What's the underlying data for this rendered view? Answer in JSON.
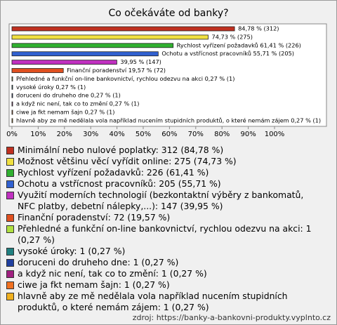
{
  "chart_data": {
    "type": "bar",
    "orientation": "horizontal",
    "title": "Co očekáváte od banky?",
    "categories": [
      "Minimální nebo nulové poplatky",
      "Možnost většinu věcí vyřídit online",
      "Rychlost vyřízení požadavků",
      "Ochotu a vstřícnost pracovníků",
      "Využití moderních technologií (bezkontaktní výběry z bankomatů, NFC platby, debetní nálepky,...)",
      "Finanční poradenství",
      "Přehledné a funkční on-line bankovnictví, rychlou odezvu na akci",
      "vysoké úroky",
      "doruceni do druheho dne",
      "a když nic není, tak co to změní",
      "ciwe ja fkt nemam šajn",
      "hlavně aby ze mě nedělala vola například nucením stupidních produktů, o které nemám zájem"
    ],
    "values": [
      84.78,
      74.73,
      61.41,
      55.71,
      39.95,
      19.57,
      0.27,
      0.27,
      0.27,
      0.27,
      0.27,
      0.27
    ],
    "value_labels": [
      "84,78 % (312)",
      "74,73 % (275)",
      "Rychlost vyřízení požadavků 61,41 % (226)",
      "Ochotu a vstřícnost pracovníků 55,71 % (205)",
      "39,95 % (147)",
      "Finanční poradenství 19,57 % (72)",
      "Přehledné a funkční on-line bankovnictví, rychlou odezvu na akci 0,27 % (1)",
      "vysoké úroky 0,27 % (1)",
      "doruceni do druheho dne 0,27 % (1)",
      "a když nic není, tak co to změní 0,27 % (1)",
      "ciwe ja fkt nemam šajn 0,27 % (1)",
      "hlavně aby ze mě nedělala vola například nucením stupidních produktů, o které nemám zájem 0,27 % (1)"
    ],
    "colors": [
      "#c03020",
      "#f0e040",
      "#30b030",
      "#3060d0",
      "#c030c0",
      "#e05020",
      "#b0e040",
      "#208080",
      "#2040a0",
      "#a02080",
      "#f07020",
      "#f0b020"
    ],
    "legend": [
      "Minimální nebo nulové poplatky: 312 (84,78 %)",
      "Možnost většinu věcí vyřídit online: 275 (74,73 %)",
      "Rychlost vyřízení požadavků: 226 (61,41 %)",
      "Ochotu a vstřícnost pracovníků: 205 (55,71 %)",
      "Využití moderních technologií (bezkontaktní výběry z bankomatů, NFC platby, debetní nálepky,...): 147 (39,95 %)",
      "Finanční poradenství: 72 (19,57 %)",
      "Přehledné a funkční on-line bankovnictví, rychlou odezvu na akci: 1 (0,27 %)",
      "vysoké úroky: 1 (0,27 %)",
      "doruceni do druheho dne: 1 (0,27 %)",
      "a když nic není, tak co to změní: 1 (0,27 %)",
      "ciwe ja fkt nemam šajn: 1 (0,27 %)",
      "hlavně aby ze mě nedělala vola například nucením stupidních produktů, o které nemám zájem: 1 (0,27 %)"
    ],
    "xlim": [
      0,
      100
    ],
    "xticks": [
      {
        "value": 0,
        "label": "0%"
      },
      {
        "value": 10,
        "label": "10%"
      },
      {
        "value": 20,
        "label": "20%"
      },
      {
        "value": 30,
        "label": "30%"
      },
      {
        "value": 40,
        "label": "40%"
      },
      {
        "value": 50,
        "label": "50%"
      },
      {
        "value": 60,
        "label": "60%"
      },
      {
        "value": 70,
        "label": "70%"
      },
      {
        "value": 80,
        "label": "80%"
      },
      {
        "value": 90,
        "label": "90%"
      },
      {
        "value": 100,
        "label": "100%"
      }
    ],
    "source": "zdroj: https://banky-a-bankovni-produkty.vyplnto.cz"
  }
}
